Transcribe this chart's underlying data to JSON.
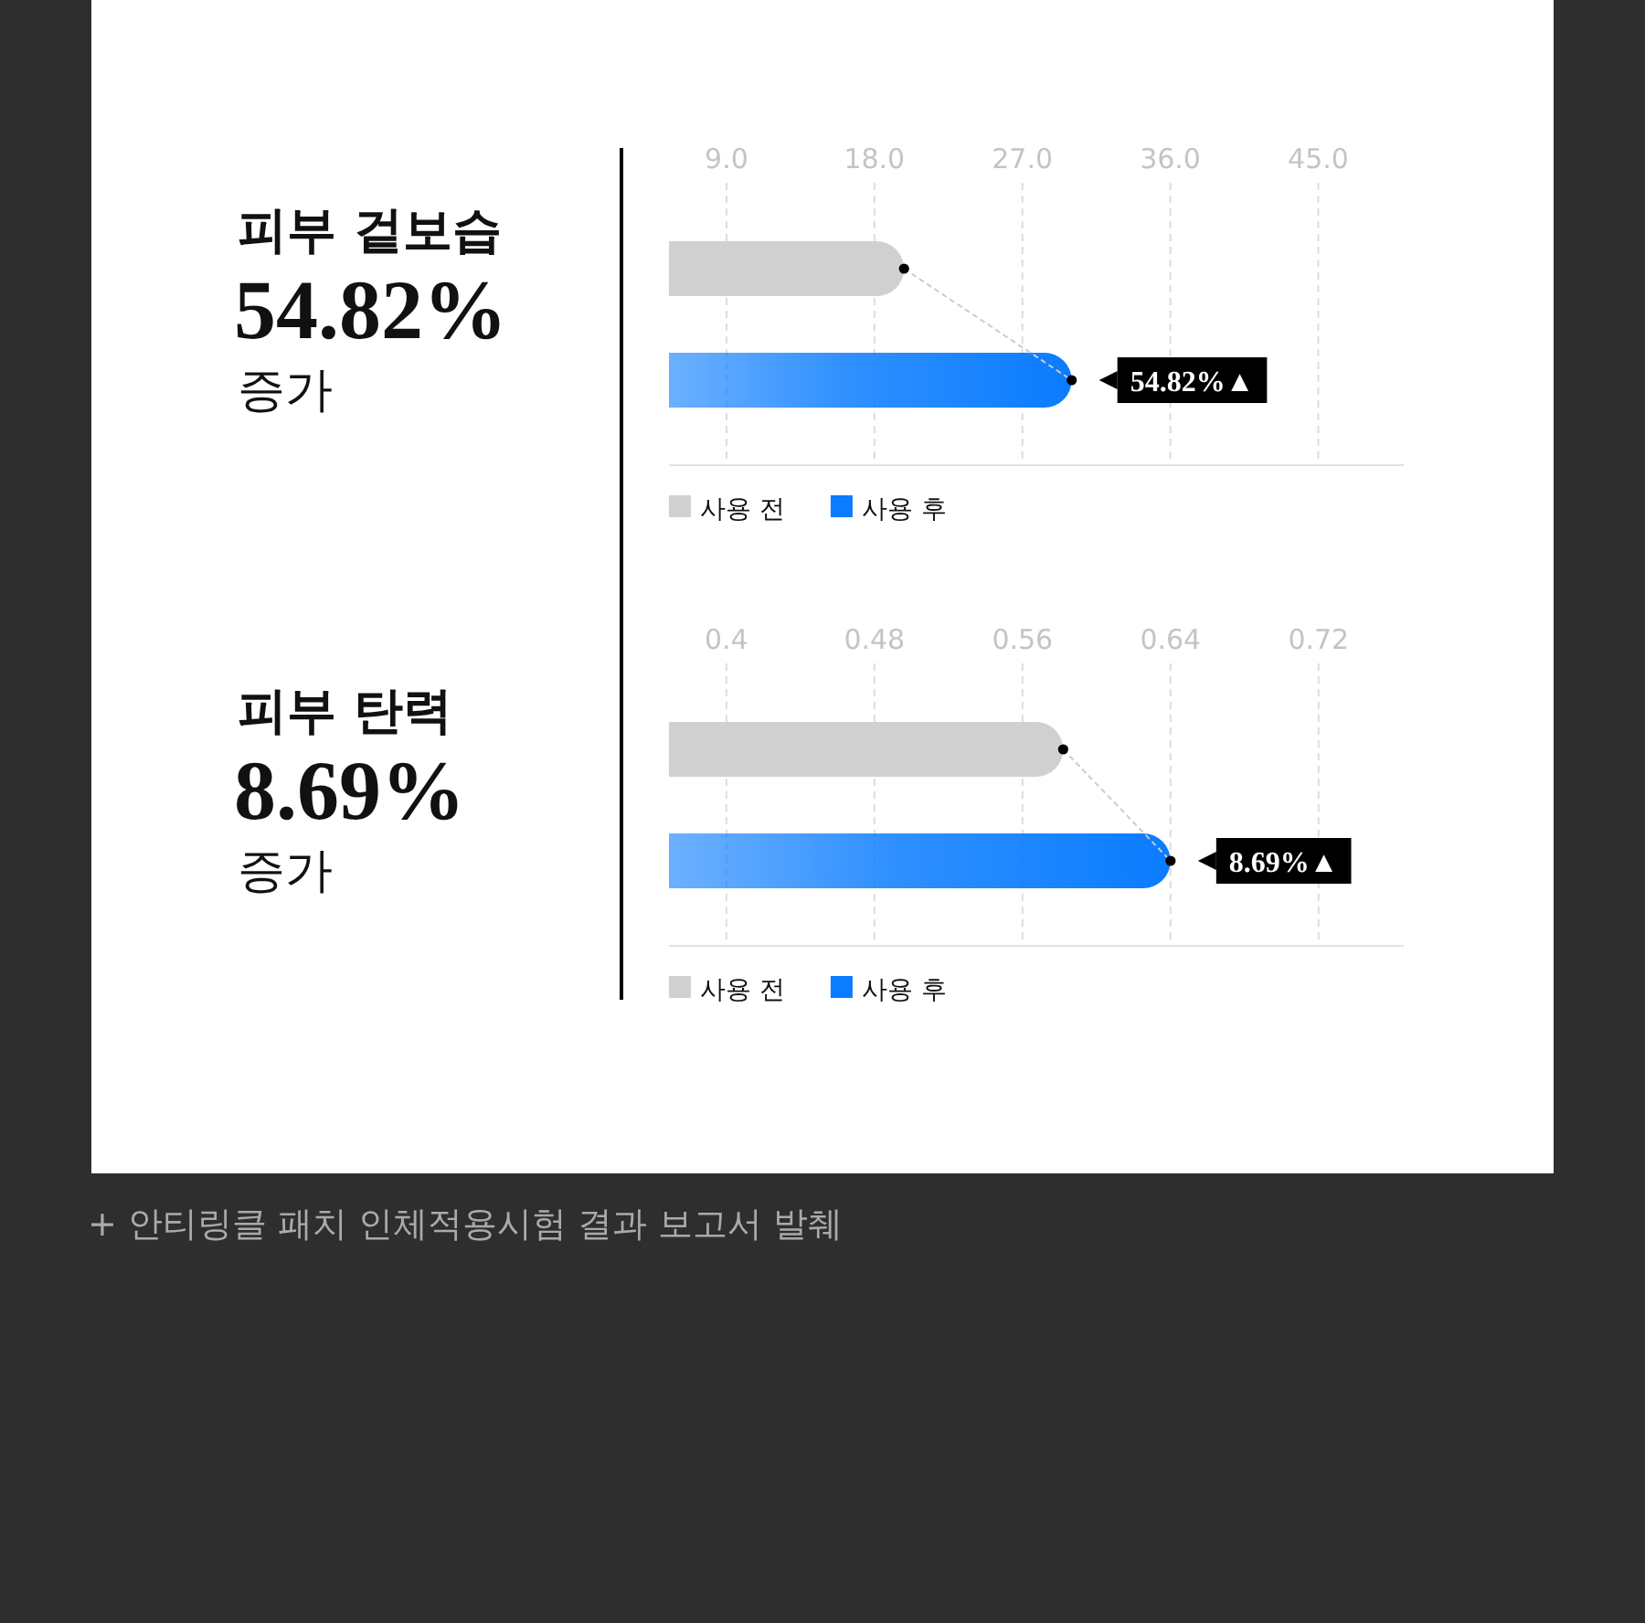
{
  "chart_data": [
    {
      "type": "bar",
      "orientation": "horizontal",
      "title": "피부 겉보습",
      "annotations": [
        "54.82%",
        "증가",
        {
          "text": "54.82%▲",
          "x": 30.0
        }
      ],
      "categories": [
        null,
        null
      ],
      "series": [
        {
          "name": "사용 전",
          "color": "#d0d0d0",
          "values": [
            19.8,
            null
          ]
        },
        {
          "name": "사용 후",
          "color": "#0a7cff",
          "values": [
            null,
            30.0
          ]
        }
      ],
      "xlim": [
        5.5,
        50.2
      ],
      "xticks": [
        {
          "value": 9,
          "label": "9.0"
        },
        {
          "value": 18,
          "label": "18.0"
        },
        {
          "value": 27,
          "label": "27.0"
        },
        {
          "value": 36,
          "label": "36.0"
        },
        {
          "value": 45,
          "label": "45.0"
        }
      ],
      "grid": "x",
      "legend": "bottom left",
      "marker": "circle"
    },
    {
      "type": "bar",
      "orientation": "horizontal",
      "title": "피부 탄력",
      "annotations": [
        "8.69%",
        "증가",
        "+ 안티링클 패치 인체적용시험 결과 보고서 발췌",
        {
          "text": "8.69%▲",
          "x": 0.64
        }
      ],
      "categories": [
        null,
        null
      ],
      "series": [
        {
          "name": "사용 전",
          "color": "#d0d0d0",
          "values": [
            0.582,
            null
          ]
        },
        {
          "name": "사용 후",
          "color": "#0a7cff",
          "values": [
            null,
            0.64
          ]
        }
      ],
      "xlim": [
        0.369,
        0.766
      ],
      "xticks": [
        0.4,
        0.48,
        0.56,
        0.64,
        0.72
      ],
      "grid": "x",
      "legend": "bottom left",
      "marker": "circle"
    }
  ]
}
